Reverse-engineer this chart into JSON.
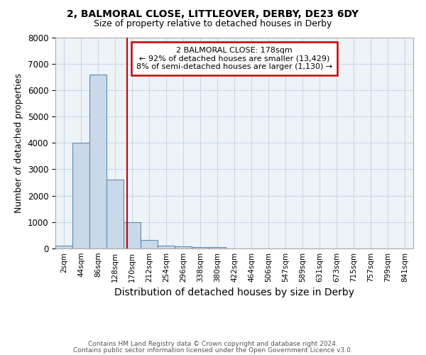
{
  "title1": "2, BALMORAL CLOSE, LITTLEOVER, DERBY, DE23 6DY",
  "title2": "Size of property relative to detached houses in Derby",
  "xlabel": "Distribution of detached houses by size in Derby",
  "ylabel": "Number of detached properties",
  "bin_edges": [
    2,
    44,
    86,
    128,
    170,
    212,
    254,
    296,
    338,
    380,
    422,
    464,
    506,
    547,
    589,
    631,
    673,
    715,
    757,
    799,
    841
  ],
  "bar_heights": [
    100,
    4000,
    6600,
    2600,
    1000,
    320,
    120,
    80,
    60,
    55,
    0,
    0,
    0,
    0,
    0,
    0,
    0,
    0,
    0,
    0
  ],
  "bar_color": "#c9d9e8",
  "bar_edgecolor": "#5b8db8",
  "bar_linewidth": 0.8,
  "grid_color": "#c8d8e8",
  "background_color": "#eef3f8",
  "vline_x": 178,
  "vline_color": "#cc0000",
  "annotation_title": "2 BALMORAL CLOSE: 178sqm",
  "annotation_line1": "← 92% of detached houses are smaller (13,429)",
  "annotation_line2": "8% of semi-detached houses are larger (1,130) →",
  "annotation_box_color": "#cc0000",
  "ylim": [
    0,
    8000
  ],
  "yticks": [
    0,
    1000,
    2000,
    3000,
    4000,
    5000,
    6000,
    7000,
    8000
  ],
  "footnote1": "Contains HM Land Registry data © Crown copyright and database right 2024.",
  "footnote2": "Contains public sector information licensed under the Open Government Licence v3.0."
}
